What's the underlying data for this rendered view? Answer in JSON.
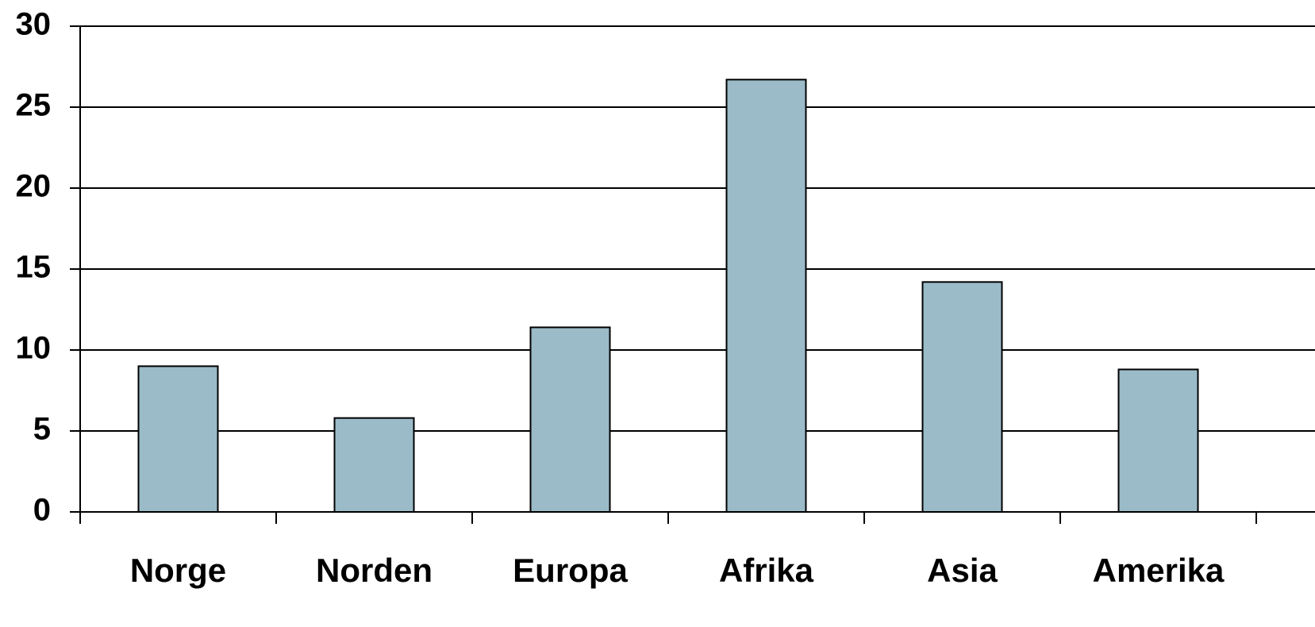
{
  "chart_data": {
    "type": "bar",
    "categories": [
      "Norge",
      "Norden",
      "Europa",
      "Afrika",
      "Asia",
      "Amerika"
    ],
    "values": [
      9.0,
      5.8,
      11.4,
      26.7,
      14.2,
      8.8
    ],
    "color": "#9bbbc8",
    "ylim": [
      0,
      30
    ],
    "yticks": [
      0,
      5,
      10,
      15,
      20,
      25,
      30
    ],
    "grid": true
  }
}
